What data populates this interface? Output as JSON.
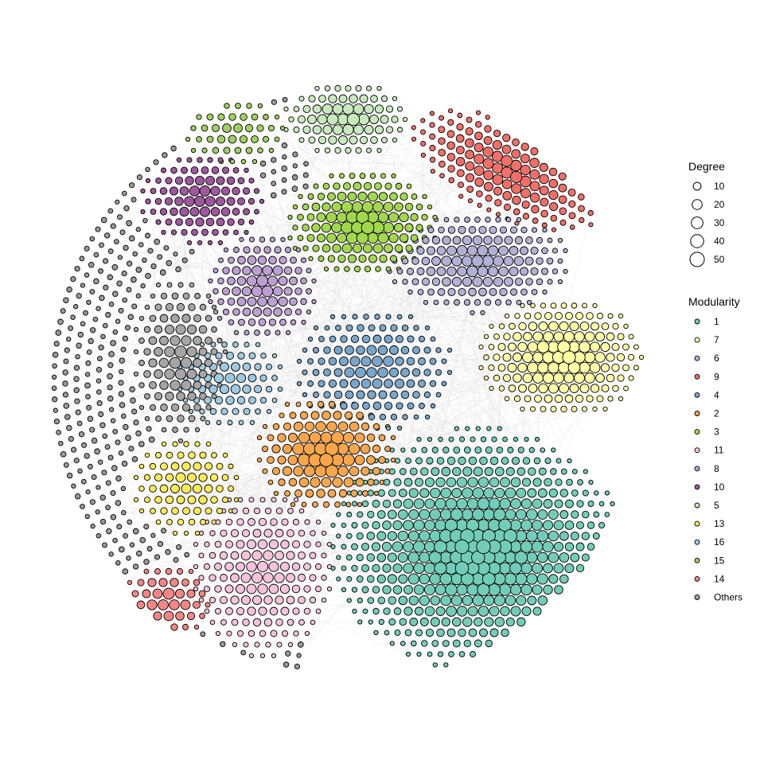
{
  "legend": {
    "degree": {
      "title": "Degree",
      "items": [
        {
          "label": "10",
          "value": 10
        },
        {
          "label": "20",
          "value": 20
        },
        {
          "label": "30",
          "value": 30
        },
        {
          "label": "40",
          "value": 40
        },
        {
          "label": "50",
          "value": 50
        }
      ]
    },
    "modularity": {
      "title": "Modularity",
      "items": [
        {
          "label": "1",
          "color": "#72CDB8"
        },
        {
          "label": "7",
          "color": "#FFFFA6"
        },
        {
          "label": "6",
          "color": "#B4B0D5"
        },
        {
          "label": "9",
          "color": "#F16F68"
        },
        {
          "label": "4",
          "color": "#79A7CC"
        },
        {
          "label": "2",
          "color": "#F8A64C"
        },
        {
          "label": "3",
          "color": "#A3D84E"
        },
        {
          "label": "11",
          "color": "#F7C2DB"
        },
        {
          "label": "8",
          "color": "#BDA0D1"
        },
        {
          "label": "10",
          "color": "#9F589E"
        },
        {
          "label": "5",
          "color": "#C8E9BE"
        },
        {
          "label": "13",
          "color": "#FDEB55"
        },
        {
          "label": "16",
          "color": "#9ECAE1"
        },
        {
          "label": "15",
          "color": "#9FD160"
        },
        {
          "label": "14",
          "color": "#F58585"
        },
        {
          "label": "Others",
          "color": "#A6A6A6"
        }
      ]
    }
  },
  "network": {
    "communities": [
      {
        "id": "1",
        "color": "#72CDB8",
        "maxDegree": 50
      },
      {
        "id": "7",
        "color": "#FFFFA6",
        "maxDegree": 40
      },
      {
        "id": "6",
        "color": "#B4B0D5",
        "maxDegree": 30
      },
      {
        "id": "9",
        "color": "#F16F68",
        "maxDegree": 30
      },
      {
        "id": "4",
        "color": "#79A7CC",
        "maxDegree": 25
      },
      {
        "id": "2",
        "color": "#F8A64C",
        "maxDegree": 50
      },
      {
        "id": "3",
        "color": "#A3D84E",
        "maxDegree": 40
      },
      {
        "id": "11",
        "color": "#F7C2DB",
        "maxDegree": 25
      },
      {
        "id": "8",
        "color": "#BDA0D1",
        "maxDegree": 30
      },
      {
        "id": "10",
        "color": "#9F589E",
        "maxDegree": 25
      },
      {
        "id": "5",
        "color": "#C8E9BE",
        "maxDegree": 35
      },
      {
        "id": "13",
        "color": "#FDEB55",
        "maxDegree": 20
      },
      {
        "id": "16",
        "color": "#9ECAE1",
        "maxDegree": 20
      },
      {
        "id": "15",
        "color": "#9FD160",
        "maxDegree": 15
      },
      {
        "id": "14",
        "color": "#F58585",
        "maxDegree": 30
      },
      {
        "id": "Others",
        "color": "#A6A6A6",
        "maxDegree": 30
      },
      {
        "id": "Others-low",
        "color": "#9A9A9A",
        "maxDegree": 10
      }
    ],
    "edgeColor": "#dcdcdc",
    "nodeStroke": "#000000"
  }
}
